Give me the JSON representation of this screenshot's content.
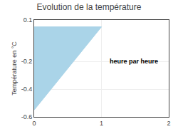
{
  "chart_data": {
    "type": "area",
    "title": "Evolution de la température",
    "ylabel": "Température en °C",
    "annotations": [
      {
        "text": "heure par heure",
        "x": 1.1,
        "y": -0.2
      }
    ],
    "x": [
      0,
      1,
      0
    ],
    "values": [
      0.05,
      0.05,
      -0.55
    ],
    "color": "#aad4e8",
    "xlim": [
      0,
      2
    ],
    "ylim": [
      -0.6,
      0.1
    ],
    "xticks": [
      0,
      1,
      2
    ],
    "yticks": [
      0.1,
      -0.2,
      -0.4,
      -0.6
    ],
    "grid": true
  }
}
